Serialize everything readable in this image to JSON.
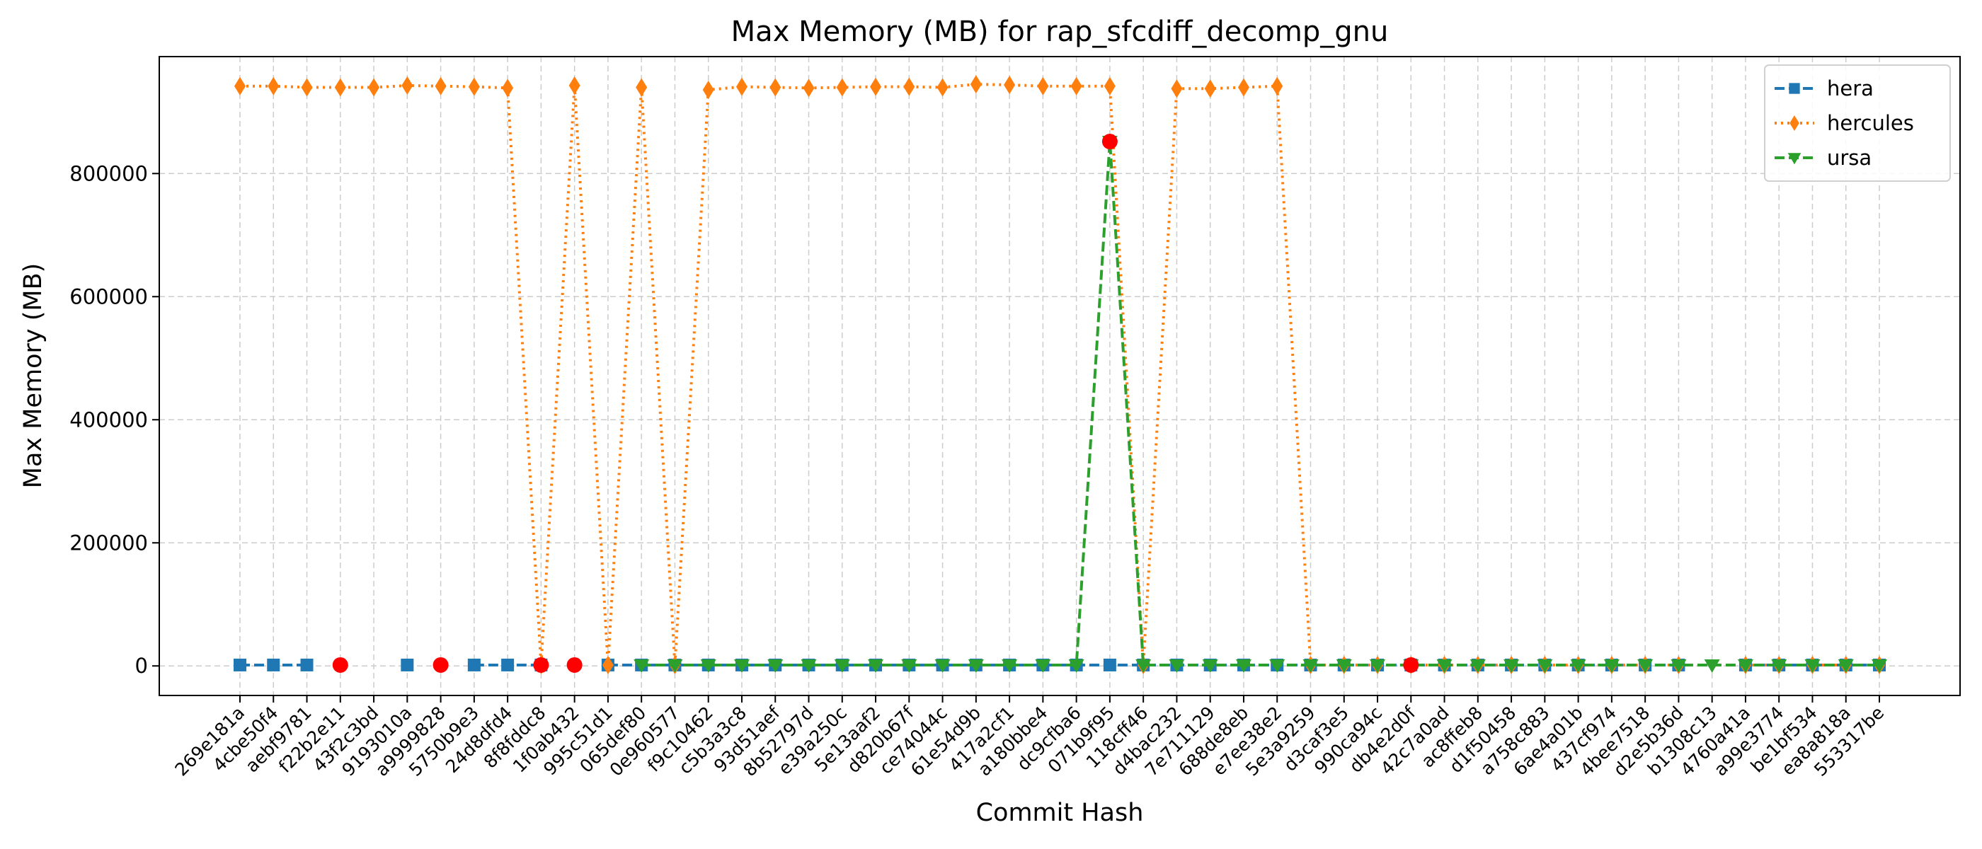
{
  "chart_data": {
    "type": "line",
    "title": "Max Memory (MB) for rap_sfcdiff_decomp_gnu",
    "xlabel": "Commit Hash",
    "ylabel": "Max Memory (MB)",
    "ylim": [
      -48000,
      990000
    ],
    "yticks": [
      0,
      200000,
      400000,
      600000,
      800000
    ],
    "grid": true,
    "legend": "top-right",
    "categories": [
      "269e181a",
      "4cbe50f4",
      "aebf9781",
      "f22b2e11",
      "43f2c3bd",
      "9193010a",
      "a9999828",
      "5750b9e3",
      "24d8dfd4",
      "8f8fddc8",
      "1f0ab432",
      "995c51d1",
      "065def80",
      "0e960577",
      "f9c10462",
      "c5b3a3c8",
      "93d51aef",
      "8b52797d",
      "e39a250c",
      "5e13aaf2",
      "d820b67f",
      "ce74044c",
      "61e54d9b",
      "417a2cf1",
      "a180bbe4",
      "dc9cfba6",
      "071b9f95",
      "118cff46",
      "d4bac232",
      "7e711129",
      "688de8eb",
      "e7ee38e2",
      "5e3a9259",
      "d3caf3e5",
      "990ca94c",
      "db4e2d0f",
      "42c7a0ad",
      "ac8ffeb8",
      "d1f50458",
      "a758c883",
      "6ae4a01b",
      "437cf974",
      "4bee7518",
      "d2e5b36d",
      "b1308c13",
      "4760a41a",
      "a99e3774",
      "be1bf534",
      "ea8a818a",
      "553317be"
    ],
    "series": [
      {
        "name": "hera",
        "color": "#1f77b4",
        "marker": "square",
        "line": "dashed",
        "values": [
          1500,
          1500,
          1500,
          null,
          null,
          1500,
          null,
          1500,
          1500,
          1500,
          null,
          1500,
          1500,
          1500,
          1500,
          1500,
          1500,
          1500,
          1500,
          1500,
          1500,
          1500,
          1500,
          1500,
          1500,
          1500,
          1500,
          1500,
          1500,
          1500,
          1500,
          1500,
          1500,
          1500,
          1500,
          1500,
          1500,
          1500,
          1500,
          1500,
          1500,
          1500,
          1500,
          1500,
          null,
          1500,
          1500,
          1500,
          1500,
          1500
        ]
      },
      {
        "name": "hercules",
        "color": "#ff7f0e",
        "marker": "diamond",
        "line": "dotted",
        "values": [
          942000,
          942000,
          940000,
          940000,
          940000,
          943000,
          942000,
          941000,
          939000,
          1500,
          943000,
          1500,
          940000,
          1500,
          936000,
          941000,
          940000,
          939000,
          940000,
          941000,
          941000,
          940000,
          945000,
          944000,
          942000,
          942000,
          942000,
          1500,
          938000,
          938000,
          940000,
          942000,
          1500,
          1500,
          1500,
          1500,
          1500,
          1500,
          1500,
          1500,
          1500,
          1500,
          1500,
          1500,
          null,
          1500,
          1500,
          1500,
          1500,
          1500
        ]
      },
      {
        "name": "ursa",
        "color": "#2ca02c",
        "marker": "triangle-down",
        "line": "dashed",
        "values": [
          null,
          null,
          null,
          null,
          null,
          null,
          null,
          null,
          null,
          null,
          null,
          null,
          1500,
          1500,
          1500,
          1500,
          1500,
          1500,
          1500,
          1500,
          1500,
          1500,
          1500,
          1500,
          1500,
          1500,
          852000,
          1500,
          1500,
          1500,
          1500,
          1500,
          1500,
          1500,
          1500,
          1500,
          1500,
          1500,
          1500,
          1500,
          1500,
          1500,
          1500,
          1500,
          1500,
          1500,
          1500,
          1500,
          1500,
          1500
        ]
      }
    ],
    "highlights": {
      "color": "#ff0000",
      "points": [
        {
          "x": "f22b2e11",
          "y": 1500
        },
        {
          "x": "a9999828",
          "y": 1500
        },
        {
          "x": "8f8fddc8",
          "y": 1500
        },
        {
          "x": "1f0ab432",
          "y": 1500
        },
        {
          "x": "071b9f95",
          "y": 852000
        },
        {
          "x": "db4e2d0f",
          "y": 1500
        }
      ]
    }
  }
}
